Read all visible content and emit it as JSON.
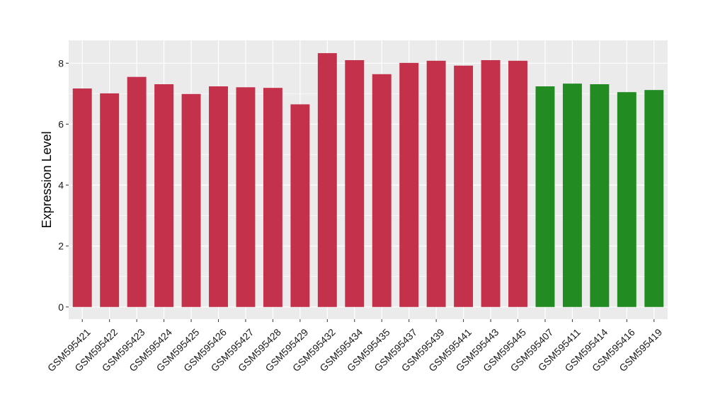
{
  "chart_data": {
    "type": "bar",
    "ylabel": "Expression Level",
    "xlabel": "",
    "ylim": [
      -0.4,
      8.75
    ],
    "yticks": [
      0,
      2,
      4,
      6,
      8
    ],
    "grid": true,
    "colors": {
      "group_a": "#C4314B",
      "group_b": "#228B22",
      "panel_bg": "#EBEBEB",
      "grid": "#FFFFFF"
    },
    "categories": [
      "GSM595421",
      "GSM595422",
      "GSM595423",
      "GSM595424",
      "GSM595425",
      "GSM595426",
      "GSM595427",
      "GSM595428",
      "GSM595429",
      "GSM595432",
      "GSM595434",
      "GSM595435",
      "GSM595437",
      "GSM595439",
      "GSM595441",
      "GSM595443",
      "GSM595445",
      "GSM595407",
      "GSM595411",
      "GSM595414",
      "GSM595416",
      "GSM595419"
    ],
    "values": [
      7.17,
      7.01,
      7.55,
      7.31,
      6.99,
      7.24,
      7.21,
      7.19,
      6.65,
      8.33,
      8.1,
      7.64,
      8.01,
      8.08,
      7.92,
      8.1,
      8.08,
      7.24,
      7.33,
      7.31,
      7.05,
      7.12
    ],
    "groups": [
      "a",
      "a",
      "a",
      "a",
      "a",
      "a",
      "a",
      "a",
      "a",
      "a",
      "a",
      "a",
      "a",
      "a",
      "a",
      "a",
      "a",
      "b",
      "b",
      "b",
      "b",
      "b"
    ]
  }
}
